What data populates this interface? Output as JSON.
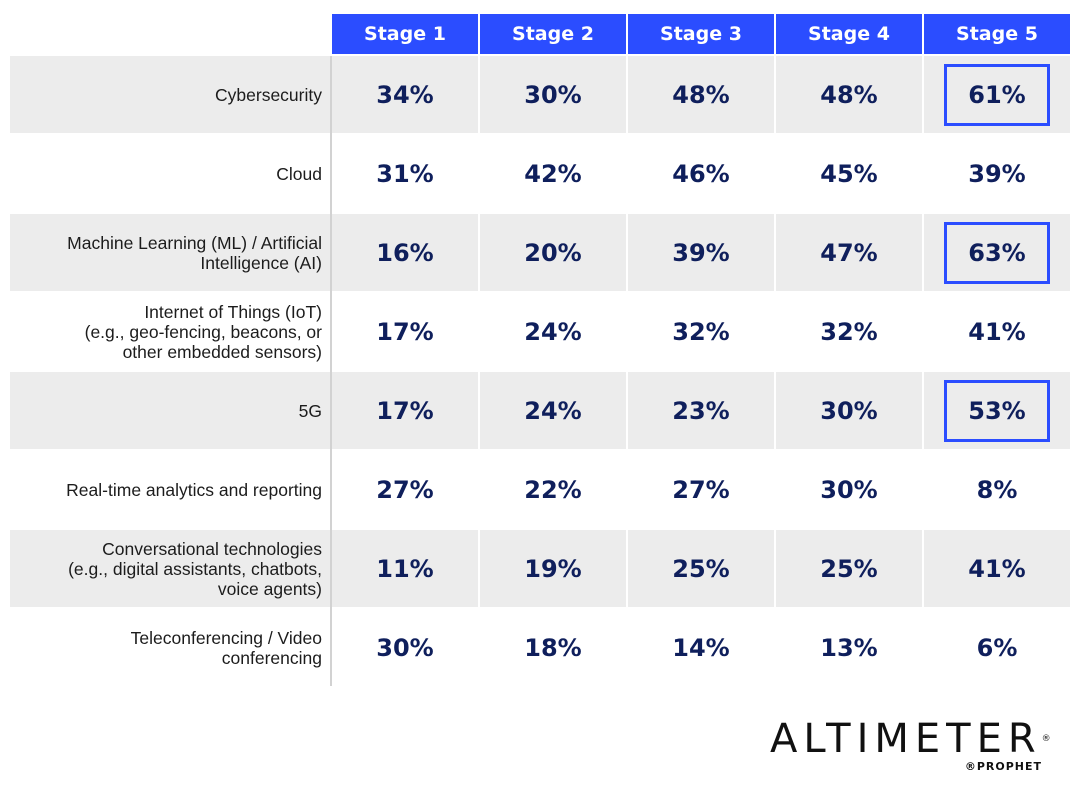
{
  "chart_data": {
    "type": "table",
    "columns": [
      "Stage 1",
      "Stage 2",
      "Stage 3",
      "Stage 4",
      "Stage 5"
    ],
    "rows": [
      {
        "label": "Cybersecurity",
        "values": [
          "34%",
          "30%",
          "48%",
          "48%",
          "61%"
        ],
        "highlight": 4
      },
      {
        "label": "Cloud",
        "values": [
          "31%",
          "42%",
          "46%",
          "45%",
          "39%"
        ],
        "highlight": -1
      },
      {
        "label": "Machine Learning (ML) / Artificial\nIntelligence (AI)",
        "values": [
          "16%",
          "20%",
          "39%",
          "47%",
          "63%"
        ],
        "highlight": 4
      },
      {
        "label": "Internet of Things (IoT)\n(e.g., geo-fencing, beacons, or\nother embedded sensors)",
        "values": [
          "17%",
          "24%",
          "32%",
          "32%",
          "41%"
        ],
        "highlight": -1
      },
      {
        "label": "5G",
        "values": [
          "17%",
          "24%",
          "23%",
          "30%",
          "53%"
        ],
        "highlight": 4
      },
      {
        "label": "Real-time analytics and reporting",
        "values": [
          "27%",
          "22%",
          "27%",
          "30%",
          "8%"
        ],
        "highlight": -1
      },
      {
        "label": "Conversational technologies\n(e.g., digital assistants, chatbots,\nvoice agents)",
        "values": [
          "11%",
          "19%",
          "25%",
          "25%",
          "41%"
        ],
        "highlight": -1
      },
      {
        "label": "Teleconferencing / Video\nconferencing",
        "values": [
          "30%",
          "18%",
          "14%",
          "13%",
          "6%"
        ],
        "highlight": -1
      }
    ]
  },
  "colors": {
    "header_bg": "#2b4dff",
    "value_text": "#0f1f5c",
    "row_shade": "#ececec",
    "highlight_border": "#2b4dff"
  },
  "logo": {
    "brand": "ALTIMETER",
    "registered": "®",
    "sub": "®PROPHET"
  }
}
